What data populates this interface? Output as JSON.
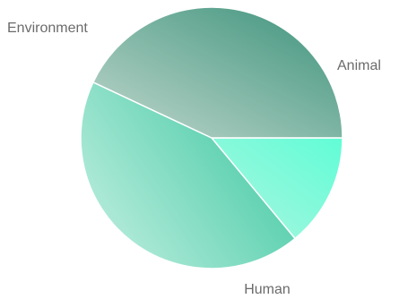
{
  "chart_data": {
    "type": "pie",
    "slices": [
      {
        "label": "Animal",
        "value": 14,
        "color_start": "#aef5e0",
        "color_end": "#60fdd6"
      },
      {
        "label": "Human",
        "value": 43,
        "color_start": "#c7f1e3",
        "color_end": "#4acba7"
      },
      {
        "label": "Environment",
        "value": 43,
        "color_start": "#c2d8ce",
        "color_end": "#3b927a"
      }
    ],
    "start": "3 o'clock",
    "direction": "clockwise",
    "label_color": "#6b6b6b",
    "slice_border_color": "#ffffff"
  }
}
